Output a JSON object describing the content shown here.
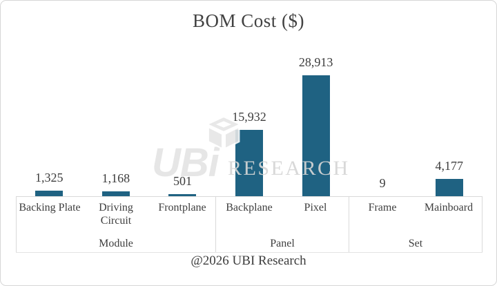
{
  "footer": "@2026 UBI Research",
  "watermark": {
    "wordmark": "UBi",
    "text": "RESEARCH",
    "icon": "cube-logo-icon"
  },
  "colors": {
    "bar": "#1f6282",
    "text": "#3e3e3e",
    "watermark": "#dcdcdc",
    "border": "#d9d9d9"
  },
  "chart_data": {
    "type": "bar",
    "title": "BOM Cost ($)",
    "xlabel": "",
    "ylabel": "",
    "y_axis_visible": false,
    "data_labels_visible": true,
    "ylim": [
      0,
      29000
    ],
    "bar_color": "#1f6282",
    "categories": [
      "Backing Plate",
      "Driving Circuit",
      "Frontplane",
      "Backplane",
      "Pixel",
      "Frame",
      "Mainboard"
    ],
    "values": [
      1325,
      1168,
      501,
      15932,
      28913,
      9,
      4177
    ],
    "value_labels": [
      "1,325",
      "1,168",
      "501",
      "15,932",
      "28,913",
      "9",
      "4,177"
    ],
    "groups": [
      {
        "label": "Module",
        "categories": [
          "Backing Plate",
          "Driving Circuit",
          "Frontplane"
        ],
        "values": [
          1325,
          1168,
          501
        ],
        "value_labels": [
          "1,325",
          "1,168",
          "501"
        ]
      },
      {
        "label": "Panel",
        "categories": [
          "Backplane",
          "Pixel"
        ],
        "values": [
          15932,
          28913
        ],
        "value_labels": [
          "15,932",
          "28,913"
        ]
      },
      {
        "label": "Set",
        "categories": [
          "Frame",
          "Mainboard"
        ],
        "values": [
          9,
          4177
        ],
        "value_labels": [
          "9",
          "4,177"
        ]
      }
    ]
  }
}
